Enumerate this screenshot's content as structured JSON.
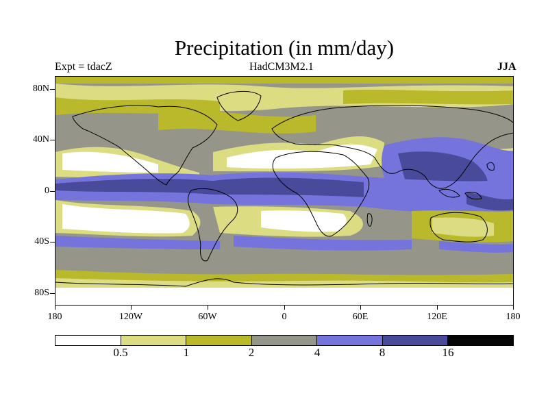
{
  "title": "Precipitation (in mm/day)",
  "subtitle_left": "Expt = tdacZ",
  "subtitle_center": "HadCM3M2.1",
  "subtitle_right": "JJA",
  "map": {
    "projection": "cylindrical equidistant",
    "lon_range": [
      -180,
      180
    ],
    "lat_range": [
      -90,
      90
    ],
    "y_ticks": [
      "80N",
      "40N",
      "0",
      "40S",
      "80S"
    ],
    "x_ticks": [
      "180",
      "120W",
      "60W",
      "0",
      "60E",
      "120E",
      "180"
    ]
  },
  "colorbar": {
    "levels": [
      "0.5",
      "1",
      "2",
      "4",
      "8",
      "16"
    ],
    "colors": [
      "#ffffff",
      "#dcdc82",
      "#b9b92b",
      "#96958a",
      "#7474dc",
      "#4a4a9a",
      "#050505"
    ]
  }
}
